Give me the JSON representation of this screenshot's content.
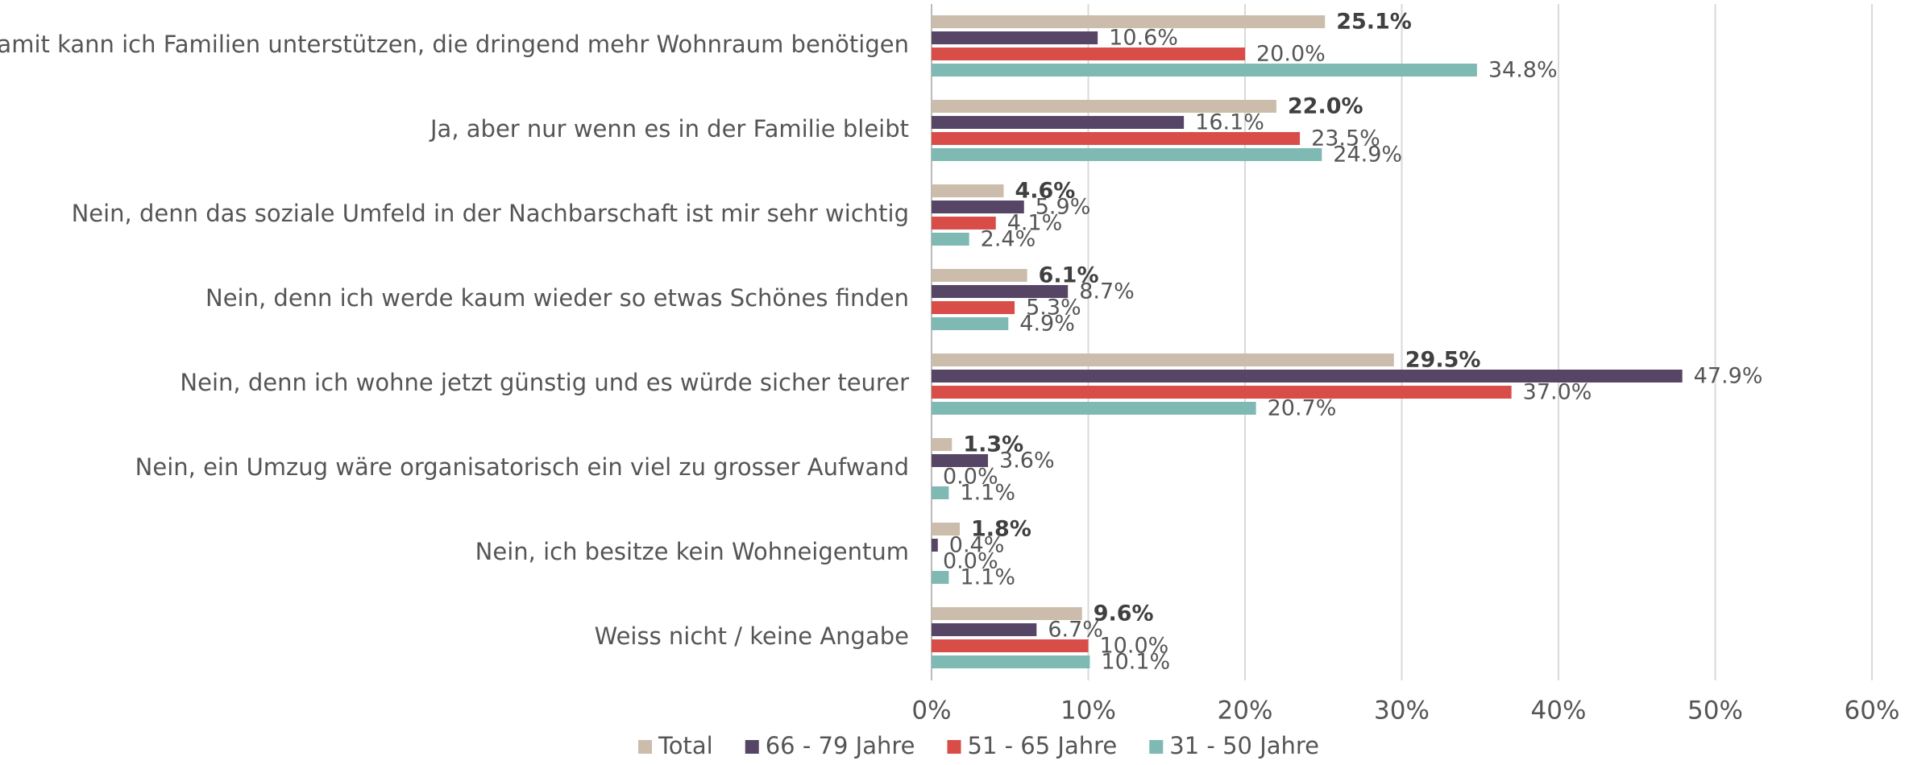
{
  "chart_data": {
    "type": "hbar",
    "categories": [
      "Ja, damit kann ich Familien unterstützen, die dringend mehr Wohnraum benötigen",
      "Ja, aber nur wenn es in der Familie bleibt",
      "Nein, denn das soziale Umfeld in der Nachbarschaft ist mir sehr wichtig",
      "Nein, denn ich werde kaum wieder so etwas Schönes finden",
      "Nein, denn ich wohne jetzt günstig und es würde sicher teurer",
      "Nein, ein Umzug wäre organisatorisch ein viel zu grosser Aufwand",
      "Nein, ich besitze kein Wohneigentum",
      "Weiss nicht / keine Angabe"
    ],
    "series": [
      {
        "name": "Total",
        "color": "#cbbcab",
        "values": [
          25.1,
          22.0,
          4.6,
          6.1,
          29.5,
          1.3,
          1.8,
          9.6
        ],
        "value_labels": [
          "25.1%",
          "22.0%",
          "4.6%",
          "6.1%",
          "29.5%",
          "1.3%",
          "1.8%",
          "9.6%"
        ]
      },
      {
        "name": "66 - 79 Jahre",
        "color": "#574566",
        "values": [
          10.6,
          16.1,
          5.9,
          8.7,
          47.9,
          3.6,
          0.4,
          6.7
        ],
        "value_labels": [
          "10.6%",
          "16.1%",
          "5.9%",
          "8.7%",
          "47.9%",
          "3.6%",
          "0.4%",
          "6.7%"
        ]
      },
      {
        "name": "51 - 65 Jahre",
        "color": "#d84d48",
        "values": [
          20.0,
          23.5,
          4.1,
          5.3,
          37.0,
          0.0,
          0.0,
          10.0
        ],
        "value_labels": [
          "20.0%",
          "23.5%",
          "4.1%",
          "5.3%",
          "37.0%",
          "0.0%",
          "0.0%",
          "10.0%"
        ]
      },
      {
        "name": "31 - 50 Jahre",
        "color": "#7fb9b3",
        "values": [
          34.8,
          24.9,
          2.4,
          4.9,
          20.7,
          1.1,
          1.1,
          10.1
        ],
        "value_labels": [
          "34.8%",
          "24.9%",
          "2.4%",
          "4.9%",
          "20.7%",
          "1.1%",
          "1.1%",
          "10.1%"
        ]
      }
    ],
    "xlim": [
      0,
      60
    ],
    "xticks": [
      {
        "value": 0,
        "label": "0%"
      },
      {
        "value": 10,
        "label": "10%"
      },
      {
        "value": 20,
        "label": "20%"
      },
      {
        "value": 30,
        "label": "30%"
      },
      {
        "value": 40,
        "label": "40%"
      },
      {
        "value": 50,
        "label": "50%"
      },
      {
        "value": 60,
        "label": "60%"
      }
    ],
    "grid": true,
    "legend": "bottom"
  }
}
